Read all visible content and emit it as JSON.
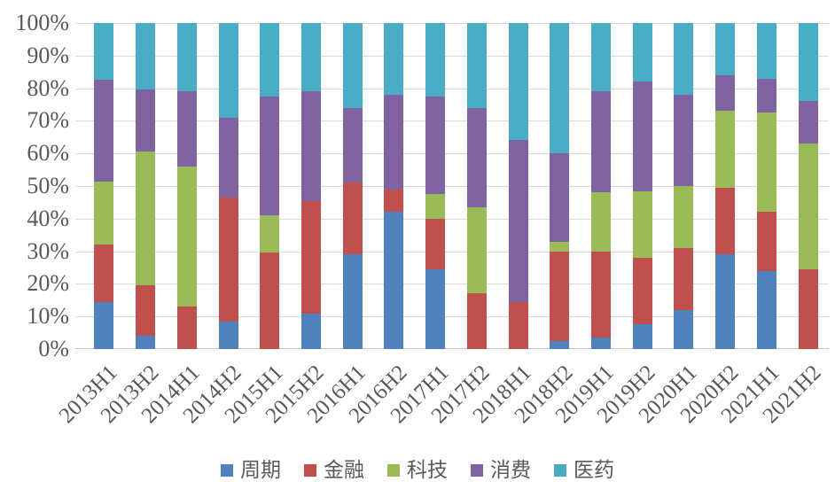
{
  "chart_data": {
    "type": "bar",
    "subtype": "stacked-100-percent-column",
    "categories": [
      "2013H1",
      "2013H2",
      "2014H1",
      "2014H2",
      "2015H1",
      "2015H2",
      "2016H1",
      "2016H2",
      "2017H1",
      "2017H2",
      "2018H1",
      "2018H2",
      "2019H1",
      "2019H2",
      "2020H1",
      "2020H2",
      "2021H1",
      "2021H2"
    ],
    "series": [
      {
        "name": "周期",
        "color": "#4F81BD",
        "values": [
          14.5,
          4,
          0,
          8.5,
          0,
          11,
          29,
          42,
          24.5,
          0,
          0,
          2.5,
          3.5,
          7.5,
          12,
          29,
          24,
          0
        ]
      },
      {
        "name": "金融",
        "color": "#C0504D",
        "values": [
          17.5,
          15.5,
          13,
          38,
          29.5,
          34.5,
          22,
          7,
          15.5,
          17,
          14.5,
          27.5,
          26.5,
          20.5,
          19,
          20.5,
          18,
          24.5
        ]
      },
      {
        "name": "科技",
        "color": "#9BBB59",
        "values": [
          19.5,
          41,
          43,
          0,
          11.5,
          0,
          0,
          0,
          7.5,
          26.5,
          0,
          3,
          18,
          20.5,
          19,
          23.5,
          30.5,
          38.5
        ]
      },
      {
        "name": "消费",
        "color": "#8064A2",
        "values": [
          31,
          19,
          23,
          24.5,
          36.5,
          33.5,
          23,
          29,
          30,
          30.5,
          49.5,
          27,
          31,
          33.5,
          28,
          11,
          10.5,
          13
        ]
      },
      {
        "name": "医药",
        "color": "#4BACC6",
        "values": [
          17.5,
          20.5,
          21,
          29,
          22.5,
          21,
          26,
          22,
          22.5,
          26,
          36,
          40,
          21,
          18,
          22,
          16,
          17,
          24
        ]
      }
    ],
    "y_axis": {
      "min": 0,
      "max": 100,
      "step": 10,
      "tick_labels": [
        "0%",
        "10%",
        "20%",
        "30%",
        "40%",
        "50%",
        "60%",
        "70%",
        "80%",
        "90%",
        "100%"
      ]
    },
    "legend": {
      "position": "bottom",
      "entries": [
        "周期",
        "金融",
        "科技",
        "消费",
        "医药"
      ]
    },
    "grid": true
  },
  "style": {
    "background": "#FFFFFF",
    "text_color": "#595959",
    "gridline_color": "#D9D9D9",
    "axis_line_color": "#C6C6C6"
  }
}
